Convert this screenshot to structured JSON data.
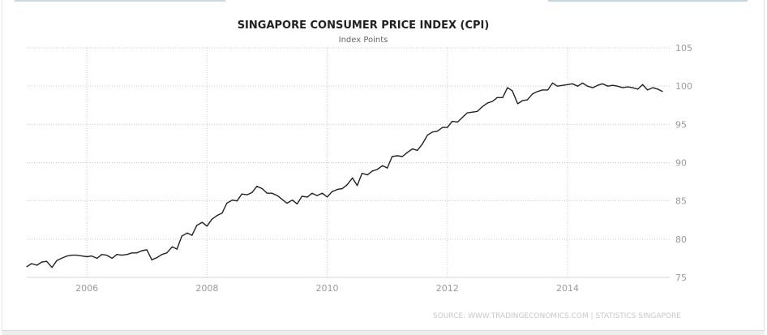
{
  "chart_data": {
    "type": "line",
    "title": "SINGAPORE CONSUMER PRICE INDEX (CPI)",
    "subtitle": "Index Points",
    "source": "SOURCE: WWW.TRADINGECONOMICS.COM | STATISTICS SINGAPORE",
    "xlim": [
      2005.0,
      2015.7
    ],
    "ylim": [
      75,
      105
    ],
    "x_ticks": [
      {
        "value": 2006,
        "label": "2006"
      },
      {
        "value": 2008,
        "label": "2008"
      },
      {
        "value": 2010,
        "label": "2010"
      },
      {
        "value": 2012,
        "label": "2012"
      },
      {
        "value": 2014,
        "label": "2014"
      }
    ],
    "y_ticks": [
      {
        "value": 75,
        "label": "75"
      },
      {
        "value": 80,
        "label": "80"
      },
      {
        "value": 85,
        "label": "85"
      },
      {
        "value": 90,
        "label": "90"
      },
      {
        "value": 95,
        "label": "95"
      },
      {
        "value": 100,
        "label": "100"
      },
      {
        "value": 105,
        "label": "105"
      }
    ],
    "grid": true,
    "line_color": "#222222",
    "series": [
      {
        "name": "",
        "x": [
          2005.0,
          2005.08,
          2005.17,
          2005.25,
          2005.33,
          2005.42,
          2005.5,
          2005.58,
          2005.67,
          2005.75,
          2005.83,
          2005.92,
          2006.0,
          2006.08,
          2006.17,
          2006.25,
          2006.33,
          2006.42,
          2006.5,
          2006.58,
          2006.67,
          2006.75,
          2006.83,
          2006.92,
          2007.0,
          2007.08,
          2007.17,
          2007.25,
          2007.33,
          2007.42,
          2007.5,
          2007.58,
          2007.67,
          2007.75,
          2007.83,
          2007.92,
          2008.0,
          2008.08,
          2008.17,
          2008.25,
          2008.33,
          2008.42,
          2008.5,
          2008.58,
          2008.67,
          2008.75,
          2008.83,
          2008.92,
          2009.0,
          2009.08,
          2009.17,
          2009.25,
          2009.33,
          2009.42,
          2009.5,
          2009.58,
          2009.67,
          2009.75,
          2009.83,
          2009.92,
          2010.0,
          2010.08,
          2010.17,
          2010.25,
          2010.33,
          2010.42,
          2010.5,
          2010.58,
          2010.67,
          2010.75,
          2010.83,
          2010.92,
          2011.0,
          2011.08,
          2011.17,
          2011.25,
          2011.33,
          2011.42,
          2011.5,
          2011.58,
          2011.67,
          2011.75,
          2011.83,
          2011.92,
          2012.0,
          2012.08,
          2012.17,
          2012.25,
          2012.33,
          2012.42,
          2012.5,
          2012.58,
          2012.67,
          2012.75,
          2012.83,
          2012.92,
          2013.0,
          2013.08,
          2013.17,
          2013.25,
          2013.33,
          2013.42,
          2013.5,
          2013.58,
          2013.67,
          2013.75,
          2013.83,
          2013.92,
          2014.0,
          2014.08,
          2014.17,
          2014.25,
          2014.33,
          2014.42,
          2014.5,
          2014.58,
          2014.67,
          2014.75,
          2014.83,
          2014.92,
          2015.0,
          2015.08,
          2015.17,
          2015.25,
          2015.33,
          2015.42,
          2015.5,
          2015.58
        ],
        "values": [
          76.4,
          76.8,
          76.6,
          77.0,
          77.1,
          76.3,
          77.2,
          77.5,
          77.8,
          77.9,
          77.9,
          77.8,
          77.7,
          77.8,
          77.5,
          78.0,
          77.9,
          77.5,
          78.0,
          77.9,
          78.0,
          78.2,
          78.2,
          78.5,
          78.6,
          77.3,
          77.6,
          78.0,
          78.2,
          79.0,
          78.7,
          80.4,
          80.8,
          80.5,
          81.8,
          82.2,
          81.7,
          82.6,
          83.1,
          83.4,
          84.7,
          85.1,
          85.0,
          85.9,
          85.8,
          86.1,
          86.9,
          86.6,
          86.0,
          86.0,
          85.7,
          85.2,
          84.7,
          85.1,
          84.6,
          85.6,
          85.5,
          86.0,
          85.7,
          86.0,
          85.5,
          86.2,
          86.5,
          86.6,
          87.1,
          88.0,
          87.0,
          88.6,
          88.4,
          88.9,
          89.1,
          89.6,
          89.3,
          90.8,
          90.9,
          90.8,
          91.3,
          91.8,
          91.6,
          92.4,
          93.6,
          94.0,
          94.1,
          94.6,
          94.6,
          95.4,
          95.3,
          95.9,
          96.5,
          96.6,
          96.7,
          97.3,
          97.8,
          98.0,
          98.5,
          98.5,
          99.8,
          99.4,
          97.7,
          98.1,
          98.2,
          99.0,
          99.3,
          99.5,
          99.5,
          100.4,
          100.0,
          100.1,
          100.2,
          100.3,
          100.0,
          100.4,
          100.0,
          99.8,
          100.1,
          100.3,
          100.0,
          100.1,
          100.0,
          99.8,
          99.9,
          99.8,
          99.6,
          100.2,
          99.5,
          99.8,
          99.6,
          99.3
        ]
      }
    ]
  }
}
